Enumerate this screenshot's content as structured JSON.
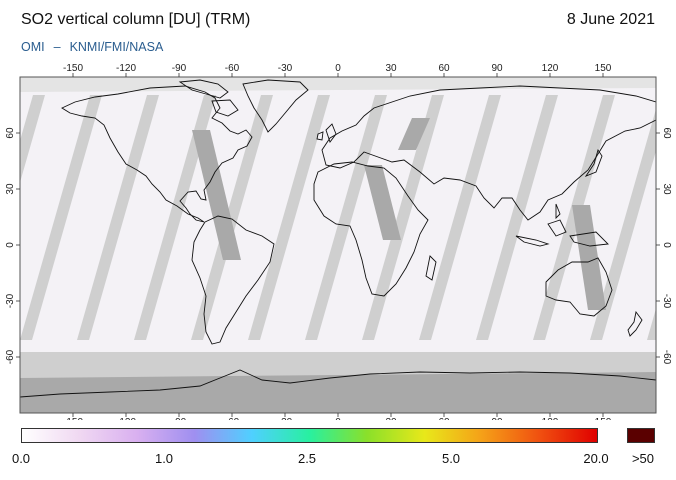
{
  "header": {
    "title": "SO2 vertical column [DU] (TRM)",
    "date": "8 June 2021",
    "instrument": "OMI",
    "separator": "–",
    "provider": "KNMI/FMI/NASA"
  },
  "map": {
    "lon_ticks": [
      "-150",
      "-120",
      "-90",
      "-60",
      "-30",
      "0",
      "30",
      "60",
      "90",
      "120",
      "150"
    ],
    "lat_ticks": [
      "60",
      "30",
      "0",
      "-30",
      "-60"
    ],
    "colors": {
      "ocean": "#f4f2f6",
      "swath_gap": "#cfcfcf",
      "dark_overlap": "#a9a9a9",
      "coast": "#111111"
    }
  },
  "colorbar": {
    "labels": [
      "0.0",
      "1.0",
      "2.5",
      "5.0",
      "20.0",
      ">50"
    ],
    "stops": [
      "#ffffff",
      "#f0d8f2",
      "#d9b0f0",
      "#9f8ff0",
      "#4fd0ff",
      "#28f0a0",
      "#8ae02a",
      "#e8e81a",
      "#f5a018",
      "#f05010",
      "#e00000"
    ],
    "overflow_color": "#5a0000"
  }
}
